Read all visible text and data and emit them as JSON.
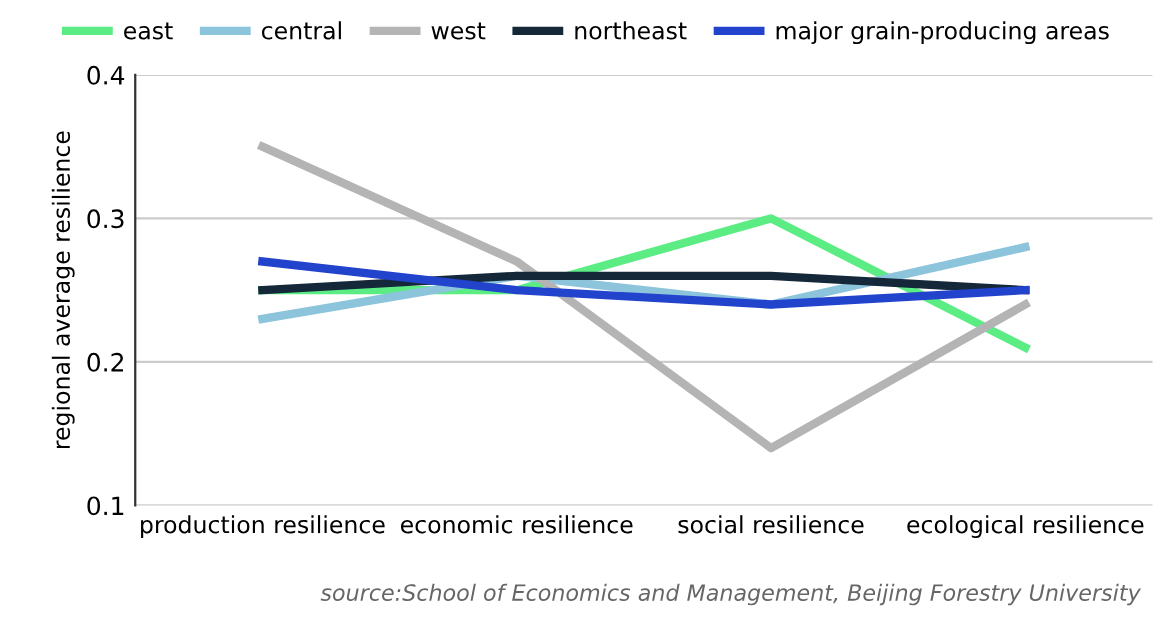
{
  "chart_data": {
    "type": "line",
    "categories": [
      "production resilience",
      "economic resilience",
      "social resilience",
      "ecological resilience"
    ],
    "series": [
      {
        "name": "east",
        "color": "#5cec84",
        "values": [
          0.25,
          0.25,
          0.3,
          0.21
        ]
      },
      {
        "name": "central",
        "color": "#8cc4dc",
        "values": [
          0.23,
          0.26,
          0.24,
          0.28
        ]
      },
      {
        "name": "west",
        "color": "#b4b4b4",
        "values": [
          0.35,
          0.27,
          0.14,
          0.24
        ]
      },
      {
        "name": "northeast",
        "color": "#14283a",
        "values": [
          0.25,
          0.26,
          0.26,
          0.25
        ]
      },
      {
        "name": "major grain-producing areas",
        "color": "#2244cc",
        "values": [
          0.27,
          0.25,
          0.24,
          0.25
        ]
      }
    ],
    "ylabel": "regional average resilience",
    "ylim": [
      0.1,
      0.4
    ],
    "yticks": [
      0.1,
      0.2,
      0.3,
      0.4
    ],
    "grid": "y",
    "legend": "top",
    "marker": "none",
    "line_style": "solid",
    "annotations": [
      "source:School of Economics and Management, Beijing Forestry University"
    ]
  }
}
